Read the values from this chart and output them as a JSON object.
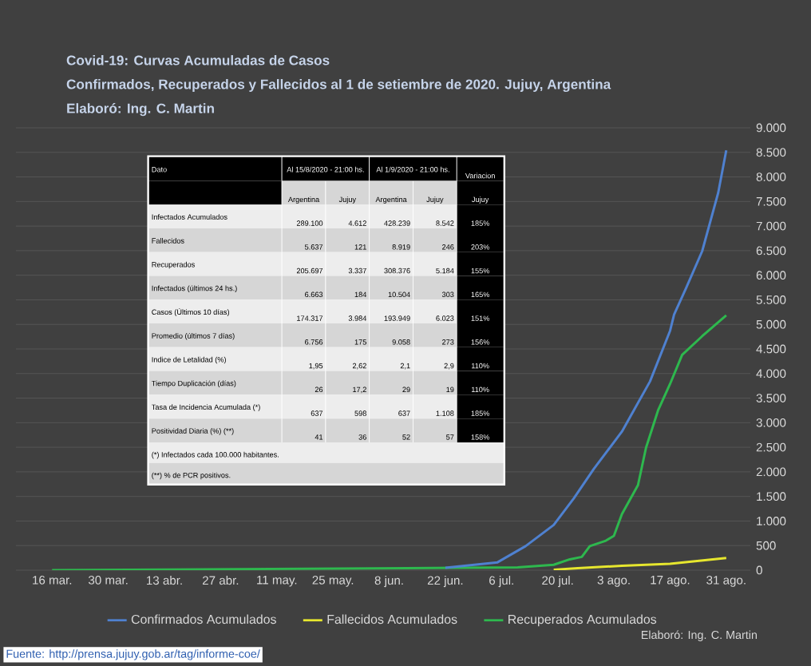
{
  "chart_data": {
    "type": "line",
    "title": "Covid-19: Curvas Acumuladas de Casos",
    "subtitle": "Confirmados, Recuperados y Fallecidos  al 1 de setiembre de  2020. Jujuy, Argentina",
    "xlim": [
      "2020-03-07",
      "2020-09-06"
    ],
    "xticks": [
      {
        "value": "2020-03-16",
        "label": "16 mar."
      },
      {
        "value": "2020-03-30",
        "label": "30 mar."
      },
      {
        "value": "2020-04-13",
        "label": "13 abr."
      },
      {
        "value": "2020-04-27",
        "label": "27 abr."
      },
      {
        "value": "2020-05-11",
        "label": "11 may."
      },
      {
        "value": "2020-05-25",
        "label": "25 may."
      },
      {
        "value": "2020-06-08",
        "label": "8 jun."
      },
      {
        "value": "2020-06-22",
        "label": "22 jun."
      },
      {
        "value": "2020-07-06",
        "label": "6 jul."
      },
      {
        "value": "2020-07-20",
        "label": "20 jul."
      },
      {
        "value": "2020-08-03",
        "label": "3 ago."
      },
      {
        "value": "2020-08-17",
        "label": "17 ago."
      },
      {
        "value": "2020-08-31",
        "label": "31 ago."
      }
    ],
    "ylim": [
      0,
      9000
    ],
    "yticks": [
      0,
      500,
      {
        "value": 1000,
        "label": "1.000"
      },
      {
        "value": 1500,
        "label": "1.500"
      },
      {
        "value": 2000,
        "label": "2.000"
      },
      {
        "value": 2500,
        "label": "2.500"
      },
      {
        "value": 3000,
        "label": "3.000"
      },
      {
        "value": 3500,
        "label": "3.500"
      },
      {
        "value": 4000,
        "label": "4.000"
      },
      {
        "value": 4500,
        "label": "4.500"
      },
      {
        "value": 5000,
        "label": "5.000"
      },
      {
        "value": 5500,
        "label": "5.500"
      },
      {
        "value": 6000,
        "label": "6.000"
      },
      {
        "value": 6500,
        "label": "6.500"
      },
      {
        "value": 7000,
        "label": "7.000"
      },
      {
        "value": 7500,
        "label": "7.500"
      },
      {
        "value": 8000,
        "label": "8.000"
      },
      {
        "value": 8500,
        "label": "8.500"
      },
      {
        "value": 9000,
        "label": "9.000"
      }
    ],
    "grid": "y",
    "legend": "bottom",
    "series": [
      {
        "name": "Confirmados Acumulados",
        "color": "#4f81d0",
        "x": [
          "2020-06-22",
          "2020-07-05",
          "2020-07-12",
          "2020-07-19",
          "2020-07-24",
          "2020-07-29",
          "2020-08-05",
          "2020-08-12",
          "2020-08-17",
          "2020-08-18",
          "2020-08-21",
          "2020-08-25",
          "2020-08-29",
          "2020-08-31"
        ],
        "values": [
          50,
          160,
          490,
          920,
          1460,
          2060,
          2820,
          3840,
          4870,
          5200,
          5740,
          6490,
          7680,
          8542
        ]
      },
      {
        "name": "Fallecidos Acumulados",
        "color": "#e6e62e",
        "x": [
          "2020-07-19",
          "2020-07-25",
          "2020-08-05",
          "2020-08-17",
          "2020-08-31"
        ],
        "values": [
          10,
          40,
          90,
          130,
          246
        ]
      },
      {
        "name": "Recuperados Acumulados",
        "color": "#2eb84e",
        "x": [
          "2020-03-16",
          "2020-07-10",
          "2020-07-19",
          "2020-07-23",
          "2020-07-26",
          "2020-07-28",
          "2020-08-01",
          "2020-08-03",
          "2020-08-05",
          "2020-08-09",
          "2020-08-11",
          "2020-08-14",
          "2020-08-17",
          "2020-08-20",
          "2020-08-25",
          "2020-08-31"
        ],
        "values": [
          0,
          55,
          110,
          220,
          270,
          490,
          600,
          700,
          1140,
          1730,
          2490,
          3250,
          3790,
          4380,
          4760,
          5184
        ]
      }
    ],
    "annotations": [
      "Elaboró: Ing. C. Martin",
      "Fuente: http://prensa.jujuy.gob.ar/tag/informe-coe/",
      "Elaboró: Ing. C. Martin",
      "Dato",
      "Al 15/8/2020 - 21:00 hs.",
      "Al 1/9/2020 - 21:00 hs.",
      "Variacion",
      "Argentina",
      "Jujuy",
      "Argentina",
      "Jujuy",
      "Jujuy",
      "Infectados Acumulados",
      "289.100",
      "4.612",
      "428.239",
      "8.542",
      "185%",
      "Fallecidos",
      "5.637",
      "121",
      "8.919",
      "246",
      "203%",
      "Recuperados",
      "205.697",
      "3.337",
      "308.376",
      "5.184",
      "155%",
      "Infectados (últimos 24 hs.)",
      "6.663",
      "184",
      "10.504",
      "303",
      "165%",
      "Casos (Últimos 10 días)",
      "174.317",
      "3.984",
      "193.949",
      "6.023",
      "151%",
      "Promedio (últimos 7 días)",
      "6.756",
      "175",
      "9.058",
      "273",
      "156%",
      "Indice de Letalidad (%)",
      "1,95",
      "2,62",
      "2,1",
      "2,9",
      "110%",
      "Tiempo Duplicación (días)",
      "26",
      "17,2",
      "29",
      "19",
      "110%",
      "Tasa de Incidencia Acumulada (*)",
      "637",
      "598",
      "637",
      "1.108",
      "185%",
      "Positividad Diaria (%) (**)",
      "41",
      "36",
      "52",
      "57",
      "158%",
      "(*) Infectados cada 100.000 habitantes.",
      "(**) % de PCR positivos."
    ]
  }
}
